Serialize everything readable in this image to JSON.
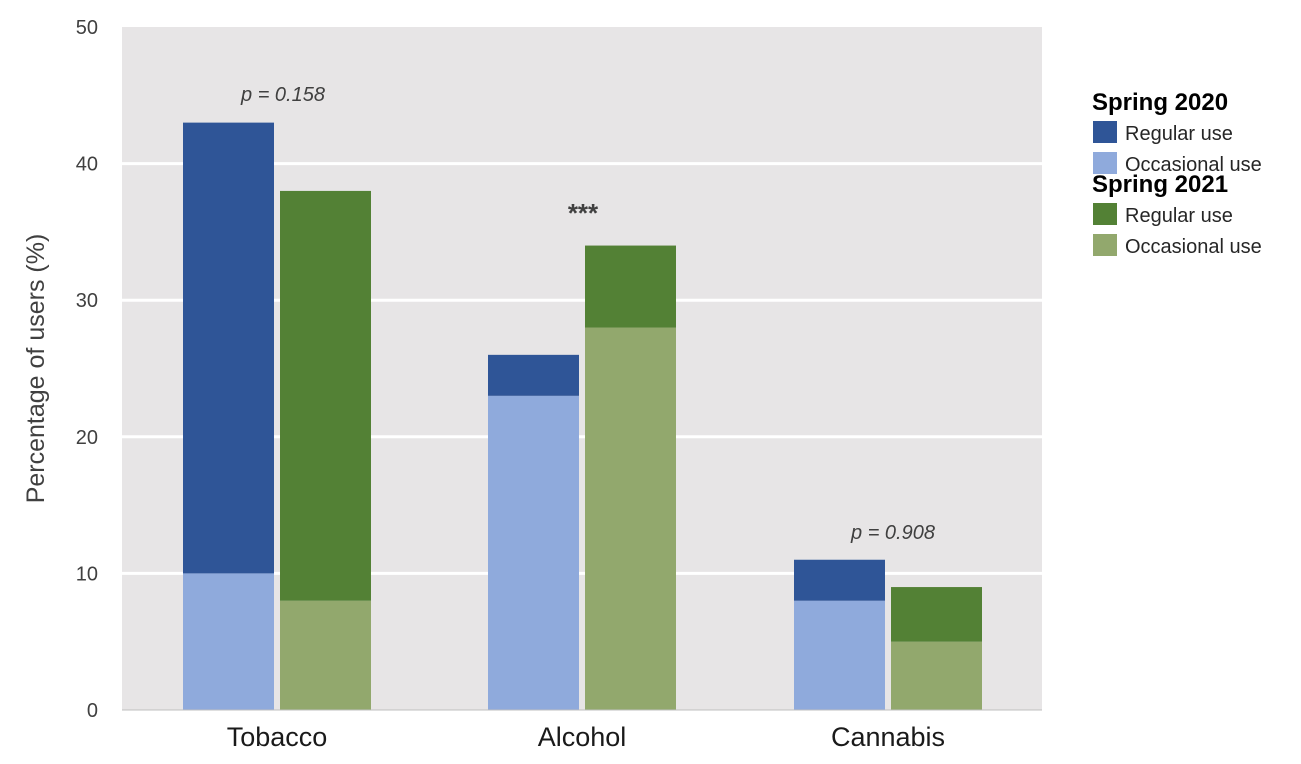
{
  "chart_data": {
    "type": "bar",
    "stacked": true,
    "grouped": true,
    "title": "",
    "xlabel": "",
    "ylabel": "Percentage of users (%)",
    "ylim": [
      0,
      50
    ],
    "yticks": [
      0,
      10,
      20,
      30,
      40,
      50
    ],
    "grid": "horizontal",
    "categories": [
      "Tobacco",
      "Alcohol",
      "Cannabis"
    ],
    "groups": [
      {
        "name": "Spring 2020",
        "series": [
          {
            "name": "Occasional use",
            "color": "#8FAADC",
            "values": [
              10,
              23,
              8
            ]
          },
          {
            "name": "Regular use",
            "color": "#2F5597",
            "values": [
              33,
              3,
              3
            ]
          }
        ]
      },
      {
        "name": "Spring 2021",
        "series": [
          {
            "name": "Occasional use",
            "color": "#92A86D",
            "values": [
              8,
              28,
              5
            ]
          },
          {
            "name": "Regular use",
            "color": "#538135",
            "values": [
              30,
              6,
              4
            ]
          }
        ]
      }
    ],
    "annotations": [
      "p = 0.158",
      "***",
      "p = 0.908"
    ],
    "legend": {
      "position": "right",
      "sections": [
        {
          "title": "Spring 2020",
          "items": [
            {
              "label": "Regular use",
              "color": "#2F5597"
            },
            {
              "label": "Occasional use",
              "color": "#8FAADC"
            }
          ]
        },
        {
          "title": "Spring 2021",
          "items": [
            {
              "label": "Regular use",
              "color": "#538135"
            },
            {
              "label": "Occasional use",
              "color": "#92A86D"
            }
          ]
        }
      ]
    },
    "background_color": "#E7E5E6"
  }
}
